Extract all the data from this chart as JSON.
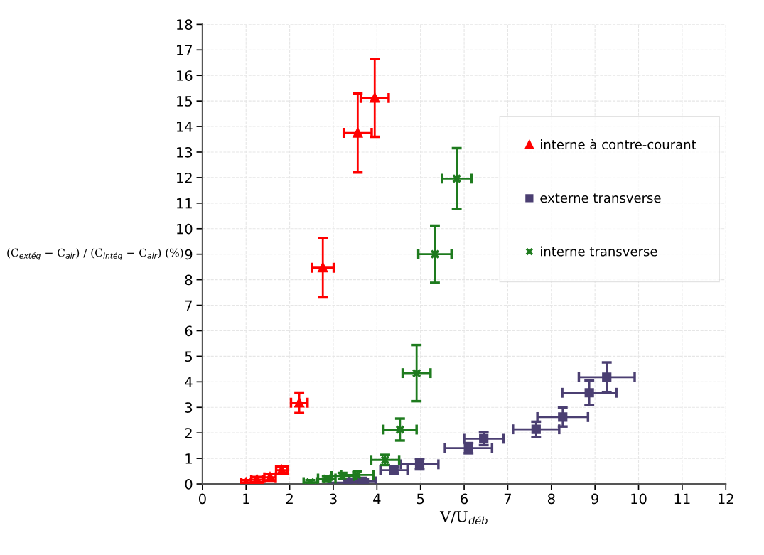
{
  "chart_data": {
    "type": "scatter",
    "xlabel": "V/U$_{déb}$",
    "ylabel": "(C̄$_{extéq}$ − C$_{air}$) / (C̄$_{intéq}$ − C$_{air}$) (%)",
    "xlim": [
      0,
      12
    ],
    "ylim": [
      0,
      18
    ],
    "xticks": [
      0,
      1,
      2,
      3,
      4,
      5,
      6,
      7,
      8,
      9,
      10,
      11,
      12
    ],
    "yticks": [
      0,
      1,
      2,
      3,
      4,
      5,
      6,
      7,
      8,
      9,
      10,
      11,
      12,
      13,
      14,
      15,
      16,
      17,
      18
    ],
    "grid": true,
    "legend": "right",
    "series": [
      {
        "name": "interne à contre-courant",
        "color": "#ff0000",
        "marker": "triangle",
        "x": [
          1.0,
          1.25,
          1.55,
          1.82,
          2.22,
          2.76,
          3.56,
          3.95
        ],
        "values": [
          0.05,
          0.17,
          0.26,
          0.54,
          3.18,
          8.47,
          13.75,
          15.12
        ],
        "xerrors": [
          0.11,
          0.13,
          0.13,
          0.13,
          0.19,
          0.25,
          0.32,
          0.32
        ],
        "errors": [
          0.1,
          0.1,
          0.12,
          0.15,
          0.4,
          1.16,
          1.55,
          1.52
        ]
      },
      {
        "name": "externe transverse",
        "color": "#4b3f72",
        "marker": "square",
        "x": [
          3.34,
          3.67,
          4.39,
          4.98,
          6.1,
          6.45,
          7.65,
          8.26,
          8.87,
          9.27
        ],
        "values": [
          0.05,
          0.1,
          0.54,
          0.77,
          1.4,
          1.77,
          2.14,
          2.62,
          3.57,
          4.18
        ],
        "xerrors": [
          0.45,
          0.3,
          0.31,
          0.43,
          0.54,
          0.45,
          0.53,
          0.58,
          0.62,
          0.64
        ],
        "errors": [
          0.1,
          0.1,
          0.12,
          0.2,
          0.2,
          0.25,
          0.3,
          0.37,
          0.48,
          0.58
        ]
      },
      {
        "name": "interne transverse",
        "color": "#1e7b1e",
        "marker": "cross",
        "x": [
          2.47,
          2.85,
          3.21,
          3.55,
          4.19,
          4.53,
          4.91,
          5.33,
          5.83
        ],
        "values": [
          0.07,
          0.21,
          0.31,
          0.35,
          0.94,
          2.13,
          4.34,
          9.0,
          11.96
        ],
        "xerrors": [
          0.15,
          0.2,
          0.25,
          0.37,
          0.32,
          0.38,
          0.32,
          0.38,
          0.34
        ],
        "errors": [
          0.08,
          0.1,
          0.12,
          0.15,
          0.2,
          0.43,
          1.1,
          1.12,
          1.19
        ]
      }
    ]
  }
}
